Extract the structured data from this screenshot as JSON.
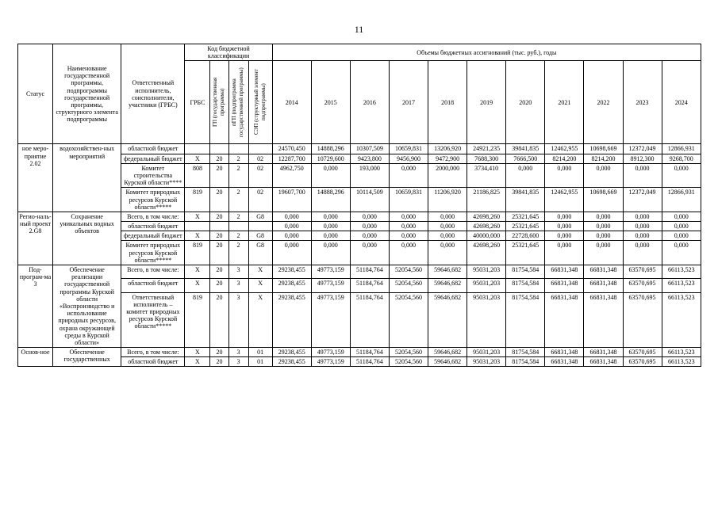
{
  "page": {
    "number": "11"
  },
  "table": {
    "header": {
      "status": "Статус",
      "name": "Наименование государственной программы, подпрограммы государственной программы, структурного элемента подпрограммы",
      "executor": "Ответственный исполнитель, соисполнители, участники (ГРБС)",
      "code_group": "Код бюджетной классификации",
      "volumes_group": "Объемы бюджетных ассигнований (тыс. руб.), годы",
      "code_cols": [
        "ГРБС",
        "ГП (государственная программа)",
        "пГП (подпрограмма государственной программы)",
        "СЭП (структурный элемент подпрограммы)"
      ],
      "years": [
        "2014",
        "2015",
        "2016",
        "2017",
        "2018",
        "2019",
        "2020",
        "2021",
        "2022",
        "2023",
        "2024"
      ]
    },
    "groups": [
      {
        "status": "ное меро-приятие 2.02",
        "name": "водохозяйствен-ных мероприятий",
        "rows": [
          {
            "executor": "областной бюджет",
            "codes": [
              "",
              "",
              "",
              ""
            ],
            "values": [
              "24570,450",
              "14888,296",
              "10307,509",
              "10659,831",
              "13206,920",
              "24921,235",
              "39841,835",
              "12462,955",
              "10698,669",
              "12372,049",
              "12866,931"
            ]
          },
          {
            "executor": "федеральный бюджет",
            "codes": [
              "X",
              "20",
              "2",
              "02"
            ],
            "values": [
              "12287,700",
              "10729,600",
              "9423,800",
              "9456,900",
              "9472,900",
              "7688,300",
              "7666,500",
              "8214,200",
              "8214,200",
              "8912,300",
              "9268,700"
            ]
          },
          {
            "executor": "Комитет строительства Курской области****",
            "codes": [
              "808",
              "20",
              "2",
              "02"
            ],
            "values": [
              "4962,750",
              "0,000",
              "193,000",
              "0,000",
              "2000,000",
              "3734,410",
              "0,000",
              "0,000",
              "0,000",
              "0,000",
              "0,000"
            ]
          },
          {
            "executor": "Комитет природных ресурсов Курской области*****",
            "codes": [
              "819",
              "20",
              "2",
              "02"
            ],
            "values": [
              "19607,700",
              "14888,296",
              "10114,509",
              "10659,831",
              "11206,920",
              "21186,825",
              "39841,835",
              "12462,955",
              "10698,669",
              "12372,049",
              "12866,931"
            ]
          }
        ]
      },
      {
        "status": "Регио-наль-ный проект 2.G8",
        "name": "Сохранение уникальных водных объектов",
        "rows": [
          {
            "executor": "Всего, в том числе:",
            "codes": [
              "X",
              "20",
              "2",
              "G8"
            ],
            "values": [
              "0,000",
              "0,000",
              "0,000",
              "0,000",
              "0,000",
              "42698,260",
              "25321,645",
              "0,000",
              "0,000",
              "0,000",
              "0,000"
            ]
          },
          {
            "executor": "областной бюджет",
            "codes": [
              "",
              "",
              "",
              ""
            ],
            "values": [
              "0,000",
              "0,000",
              "0,000",
              "0,000",
              "0,000",
              "42698,260",
              "25321,645",
              "0,000",
              "0,000",
              "0,000",
              "0,000"
            ]
          },
          {
            "executor": "федеральный бюджет",
            "codes": [
              "X",
              "20",
              "2",
              "G8"
            ],
            "values": [
              "0,000",
              "0,000",
              "0,000",
              "0,000",
              "0,000",
              "40000,000",
              "22728,600",
              "0,000",
              "0,000",
              "0,000",
              "0,000"
            ]
          },
          {
            "executor": "Комитет природных ресурсов Курской области*****",
            "codes": [
              "819",
              "20",
              "2",
              "G8"
            ],
            "values": [
              "0,000",
              "0,000",
              "0,000",
              "0,000",
              "0,000",
              "42698,260",
              "25321,645",
              "0,000",
              "0,000",
              "0,000",
              "0,000"
            ]
          }
        ]
      },
      {
        "status": "Под-програм-ма 3",
        "name": "Обеспечение реализации государственной программы Курской области «Воспроизводство и использование природных ресурсов, охрана окружающей среды в Курской области»",
        "rows": [
          {
            "executor": "Всего, в том числе:",
            "codes": [
              "X",
              "20",
              "3",
              "X"
            ],
            "values": [
              "29238,455",
              "49773,159",
              "51184,764",
              "52054,560",
              "59646,682",
              "95031,203",
              "81754,584",
              "66831,348",
              "66831,348",
              "63570,695",
              "66113,523"
            ]
          },
          {
            "executor": "областной бюджет",
            "codes": [
              "X",
              "20",
              "3",
              "X"
            ],
            "values": [
              "29238,455",
              "49773,159",
              "51184,764",
              "52054,560",
              "59646,682",
              "95031,203",
              "81754,584",
              "66831,348",
              "66831,348",
              "63570,695",
              "66113,523"
            ]
          },
          {
            "executor": "Ответственный исполнитель – комитет природных ресурсов Курской области*****",
            "codes": [
              "819",
              "20",
              "3",
              "X"
            ],
            "values": [
              "29238,455",
              "49773,159",
              "51184,764",
              "52054,560",
              "59646,682",
              "95031,203",
              "81754,584",
              "66831,348",
              "66831,348",
              "63570,695",
              "66113,523"
            ]
          }
        ]
      },
      {
        "status": "Основ-ное",
        "name": "Обеспечение государственных",
        "rows": [
          {
            "executor": "Всего, в том числе:",
            "codes": [
              "X",
              "20",
              "3",
              "01"
            ],
            "values": [
              "29238,455",
              "49773,159",
              "51184,764",
              "52054,560",
              "59646,682",
              "95031,203",
              "81754,584",
              "66831,348",
              "66831,348",
              "63570,695",
              "66113,523"
            ]
          },
          {
            "executor": "областной бюджет",
            "codes": [
              "X",
              "20",
              "3",
              "01"
            ],
            "values": [
              "29238,455",
              "49773,159",
              "51184,764",
              "52054,560",
              "59646,682",
              "95031,203",
              "81754,584",
              "66831,348",
              "66831,348",
              "63570,695",
              "66113,523"
            ]
          }
        ]
      }
    ]
  }
}
